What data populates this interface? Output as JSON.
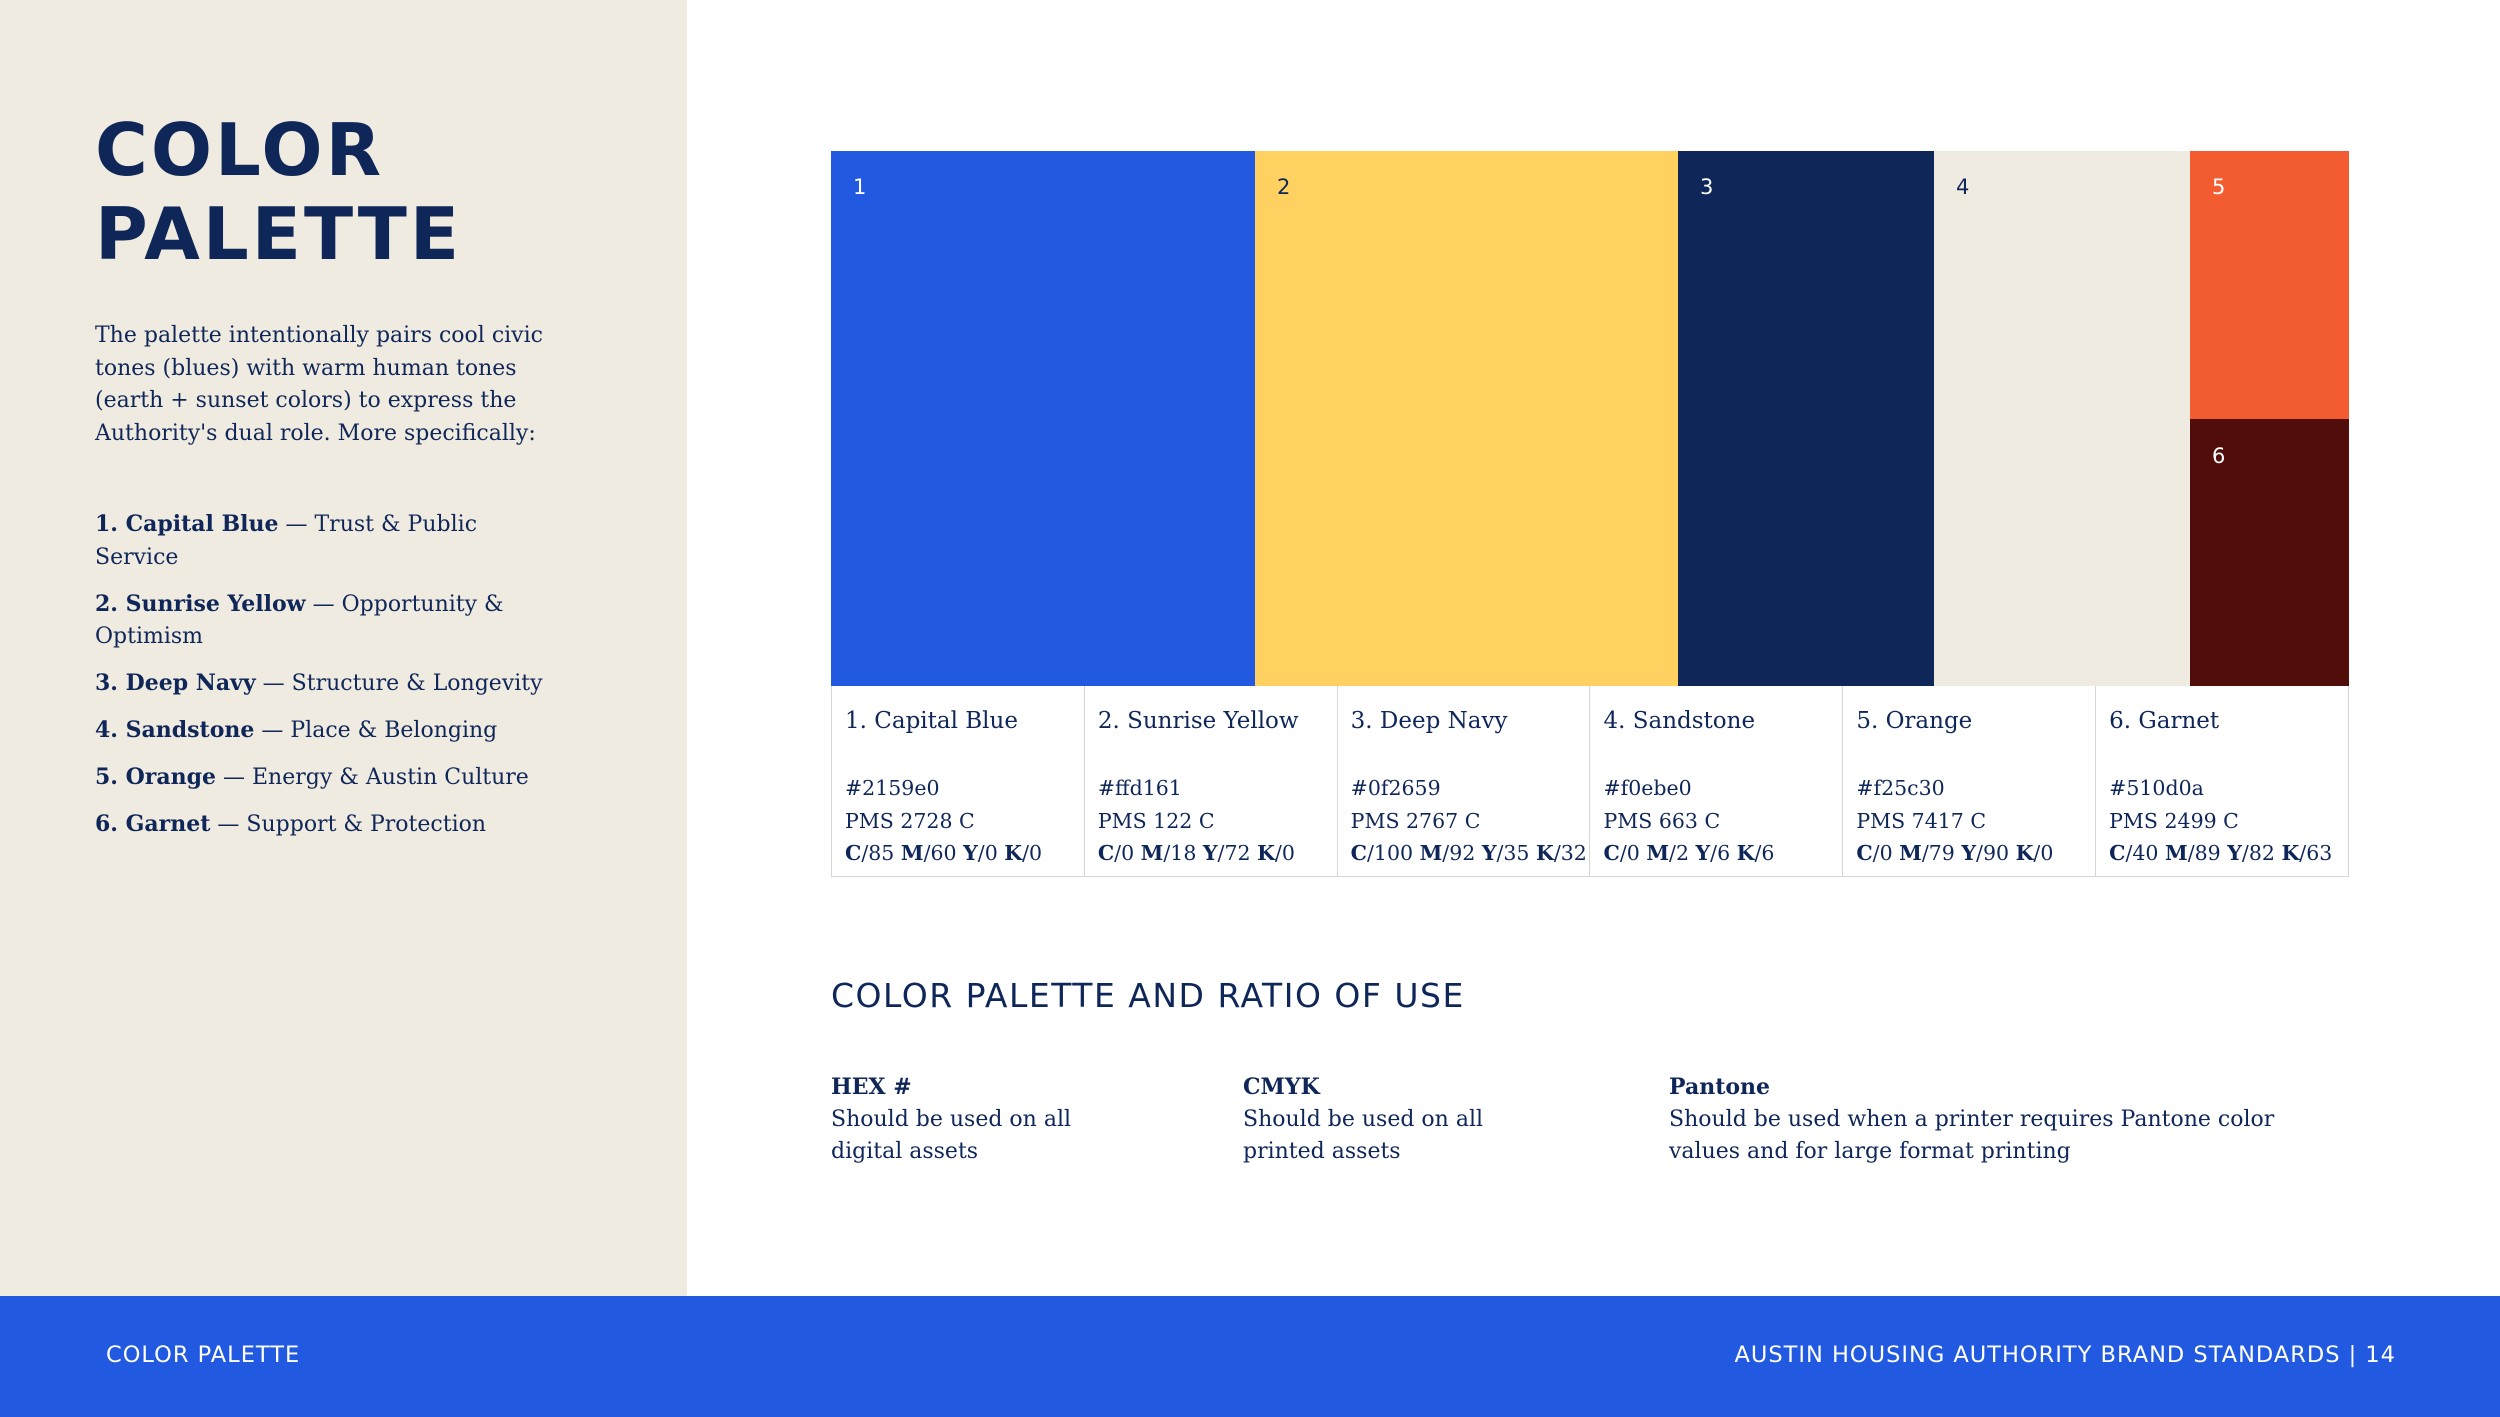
{
  "sidebar": {
    "title_lines": [
      "COLOR",
      "PALETTE"
    ],
    "intro": "The palette intentionally pairs cool civic tones (blues) with warm human tones (earth + sunset colors) to express the Authority's dual role. More specifically:",
    "roles": [
      {
        "name": "1. Capital Blue",
        "desc": " — Trust & Public Service"
      },
      {
        "name": "2. Sunrise Yellow",
        "desc": " — Opportunity & Optimism"
      },
      {
        "name": "3. Deep Navy",
        "desc": " — Structure & Longevity"
      },
      {
        "name": "4. Sandstone",
        "desc": " — Place & Belonging"
      },
      {
        "name": "5. Orange",
        "desc": " — Energy & Austin Culture"
      },
      {
        "name": "6. Garnet",
        "desc": " — Support & Protection"
      }
    ]
  },
  "swatches": [
    {
      "num": "1",
      "color": "#2159e0",
      "text_color": "#ffffff"
    },
    {
      "num": "2",
      "color": "#ffd161",
      "text_color": "#0f2659"
    },
    {
      "num": "3",
      "color": "#0f2659",
      "text_color": "#ffffff"
    },
    {
      "num": "4",
      "color": "#f0ebe0",
      "text_color": "#0f2659"
    },
    {
      "num": "5",
      "color": "#f25c30",
      "text_color": "#ffffff"
    },
    {
      "num": "6",
      "color": "#510d0a",
      "text_color": "#ffffff"
    }
  ],
  "specs": [
    {
      "name": "1. Capital Blue",
      "hex": "#2159e0",
      "pms": "PMS 2728 C",
      "c": "85",
      "m": "60",
      "y": "0",
      "k": "0"
    },
    {
      "name": "2. Sunrise Yellow",
      "hex": "#ffd161",
      "pms": "PMS 122 C",
      "c": "0",
      "m": "18",
      "y": "72",
      "k": "0"
    },
    {
      "name": "3. Deep Navy",
      "hex": "#0f2659",
      "pms": "PMS 2767 C",
      "c": "100",
      "m": "92",
      "y": "35",
      "k": "32"
    },
    {
      "name": "4. Sandstone",
      "hex": "#f0ebe0",
      "pms": "PMS 663 C",
      "c": "0",
      "m": "2",
      "y": "6",
      "k": "6"
    },
    {
      "name": "5. Orange",
      "hex": "#f25c30",
      "pms": "PMS 7417 C",
      "c": "0",
      "m": "79",
      "y": "90",
      "k": "0"
    },
    {
      "name": "6. Garnet",
      "hex": "#510d0a",
      "pms": "PMS 2499 C",
      "c": "40",
      "m": "89",
      "y": "82",
      "k": "63"
    }
  ],
  "cmyk_letters": {
    "c": "C",
    "m": "M",
    "y": "Y",
    "k": "K"
  },
  "ratio_heading": "COLOR PALETTE AND RATIO OF USE",
  "usage": {
    "hex": {
      "title": "HEX #",
      "body": "Should be used on all digital assets"
    },
    "cmyk": {
      "title": "CMYK",
      "body": "Should be used on all printed assets"
    },
    "pantone": {
      "title": "Pantone",
      "body": "Should be used when a printer requires Pantone color values and for large format printing"
    }
  },
  "footer": {
    "left": "COLOR PALETTE",
    "right": "AUSTIN HOUSING AUTHORITY BRAND STANDARDS | 14"
  }
}
